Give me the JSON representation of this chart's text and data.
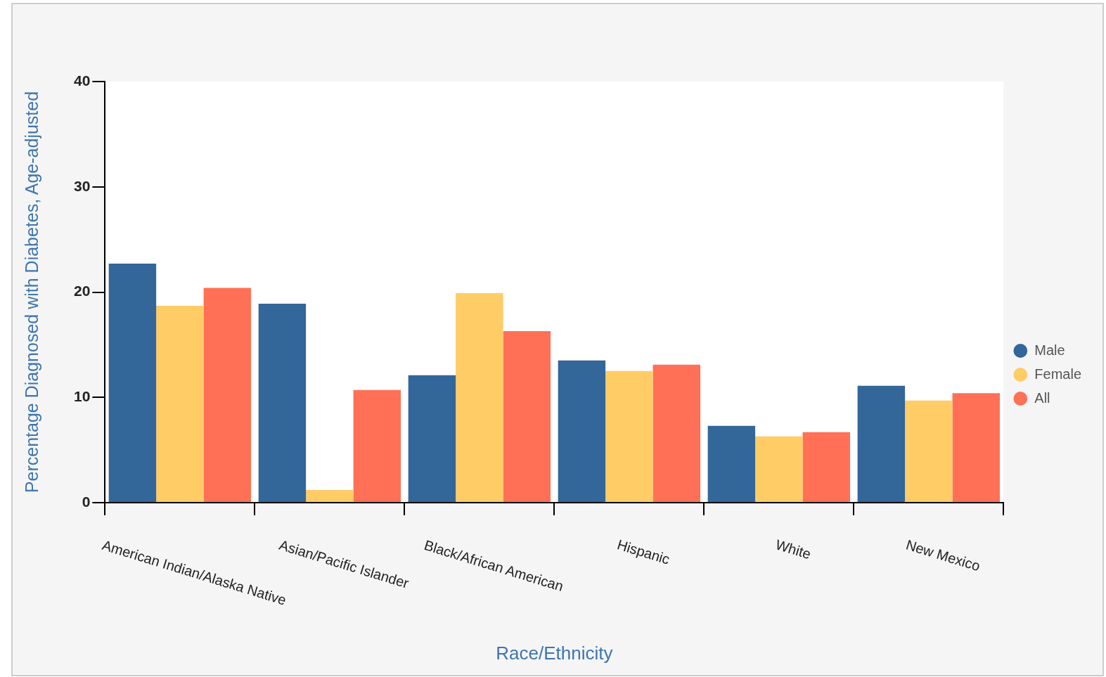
{
  "chart_data": {
    "type": "bar",
    "xlabel": "Race/Ethnicity",
    "ylabel": "Percentage Diagnosed with Diabetes, Age-adjusted",
    "categories": [
      "American Indian/Alaska Native",
      "Asian/Pacific Islander",
      "Black/African American",
      "Hispanic",
      "White",
      "New Mexico"
    ],
    "series": [
      {
        "name": "Male",
        "color": "#336699",
        "values": [
          22.7,
          18.9,
          12.1,
          13.5,
          7.3,
          11.1
        ]
      },
      {
        "name": "Female",
        "color": "#ffcc66",
        "values": [
          18.7,
          1.2,
          19.9,
          12.5,
          6.3,
          9.7
        ]
      },
      {
        "name": "All",
        "color": "#ff7056",
        "values": [
          20.4,
          10.7,
          16.3,
          13.1,
          6.7,
          10.4
        ]
      }
    ],
    "ylim": [
      0,
      40
    ],
    "yticks": [
      0,
      10,
      20,
      30,
      40
    ],
    "grid": false,
    "legend": "right"
  }
}
